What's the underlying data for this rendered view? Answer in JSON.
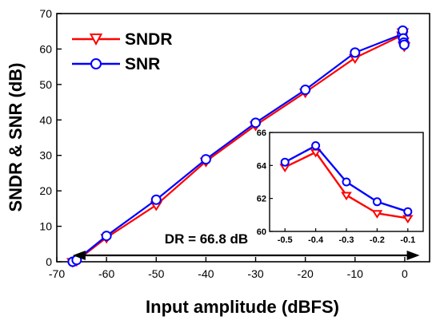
{
  "chart_data": {
    "type": "line",
    "title": "",
    "xlabel": "Input amplitude (dBFS)",
    "ylabel": "SNDR & SNR (dB)",
    "xlim": [
      -70,
      5
    ],
    "ylim": [
      0,
      70
    ],
    "xticks": [
      -70,
      -60,
      -50,
      -40,
      -30,
      -20,
      -10,
      0
    ],
    "yticks": [
      0,
      10,
      20,
      30,
      40,
      50,
      60,
      70
    ],
    "legend": "top-left",
    "series": [
      {
        "name": "SNDR",
        "color": "#ff0000",
        "marker": "down-triangle",
        "x": [
          -66.8,
          -66,
          -60,
          -50,
          -40,
          -30,
          -20,
          -10,
          -0.5,
          -0.4,
          -0.3,
          -0.2,
          -0.1
        ],
        "y": [
          0,
          0.3,
          6.8,
          16,
          28.3,
          38.5,
          47.8,
          57.5,
          63.9,
          64.8,
          62.2,
          61.1,
          60.8
        ]
      },
      {
        "name": "SNR",
        "color": "#0000ff",
        "marker": "circle",
        "x": [
          -66.8,
          -66,
          -60,
          -50,
          -40,
          -30,
          -20,
          -10,
          -0.5,
          -0.4,
          -0.3,
          -0.2,
          -0.1
        ],
        "y": [
          0,
          0.5,
          7.3,
          17.5,
          28.9,
          39.2,
          48.5,
          59,
          64.2,
          65.2,
          63,
          61.8,
          61.2
        ]
      }
    ],
    "annotation": {
      "text": "DR = 66.8 dB",
      "arrow_from": -66.8,
      "arrow_to": 3
    },
    "inset": {
      "xlim": [
        -0.55,
        -0.05
      ],
      "ylim": [
        60,
        66
      ],
      "xticks": [
        -0.5,
        -0.4,
        -0.3,
        -0.2,
        -0.1
      ],
      "yticks": [
        60,
        62,
        64,
        66
      ]
    }
  }
}
